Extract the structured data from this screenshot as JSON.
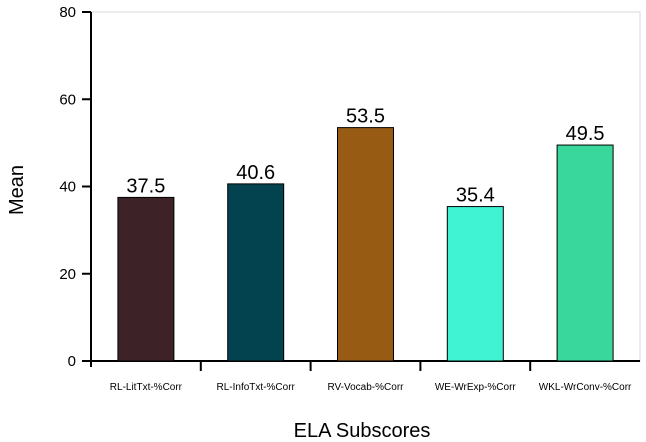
{
  "chart_data": {
    "type": "bar",
    "categories": [
      "RL-LitTxt-%Corr",
      "RL-InfoTxt-%Corr",
      "RV-Vocab-%Corr",
      "WE-WrExp-%Corr",
      "WKL-WrConv-%Corr"
    ],
    "values": [
      37.5,
      40.6,
      53.5,
      35.4,
      49.5
    ],
    "data_labels": [
      "37.5",
      "40.6",
      "53.5",
      "35.4",
      "49.5"
    ],
    "colors": [
      "#3d2328",
      "#03434f",
      "#975b14",
      "#3ff3d3",
      "#39d79b"
    ],
    "xlabel": "ELA Subscores",
    "ylabel": "Mean",
    "ylim": [
      0,
      80
    ],
    "yticks": [
      0,
      20,
      40,
      60,
      80
    ],
    "grid": false,
    "frame_color": "#d9d9d9"
  }
}
